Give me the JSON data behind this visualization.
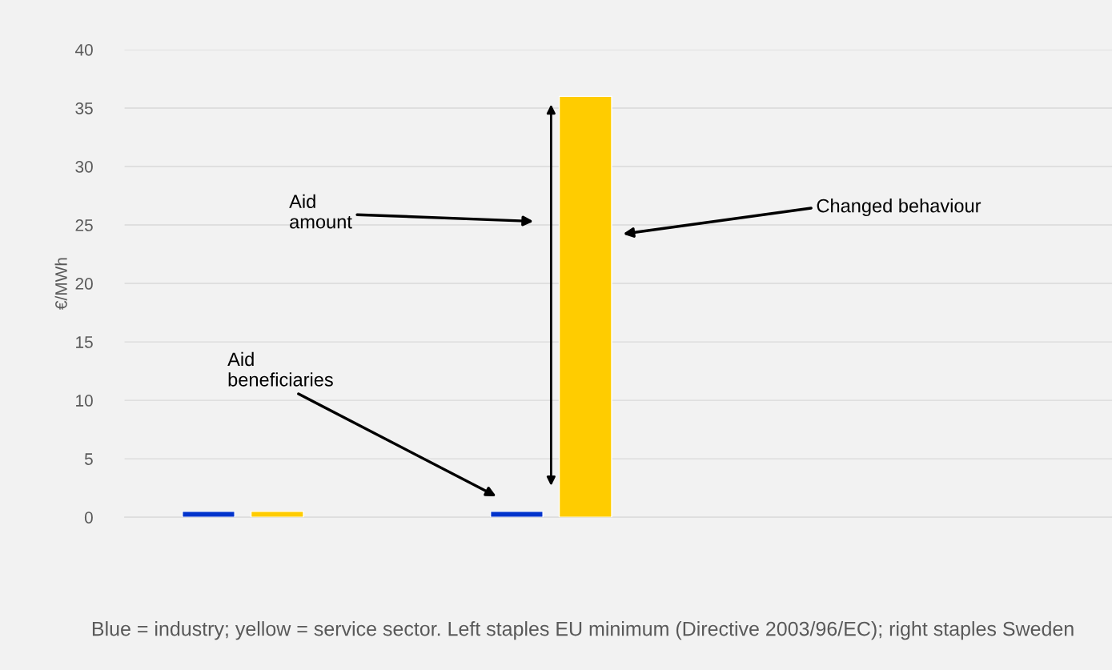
{
  "chart_data": {
    "type": "bar",
    "ylabel": "€/MWh",
    "categories": [
      null,
      null,
      null
    ],
    "series": [
      {
        "color": "#0033cc",
        "values": [
          0.5,
          0.5,
          null
        ]
      },
      {
        "color": "#ffcc00",
        "values": [
          0.5,
          36,
          null
        ]
      }
    ],
    "ylim": [
      0,
      40
    ],
    "yticks": [
      0,
      5,
      10,
      15,
      20,
      25,
      30,
      35,
      40
    ],
    "grid": "y",
    "legend": false,
    "annotations": [
      "Aid amount",
      "Aid beneficiaries",
      "Changed behaviour",
      "Blue = industry; yellow = service sector. Left staples EU minimum (Directive 2003/96/EC); right staples Sweden"
    ]
  }
}
